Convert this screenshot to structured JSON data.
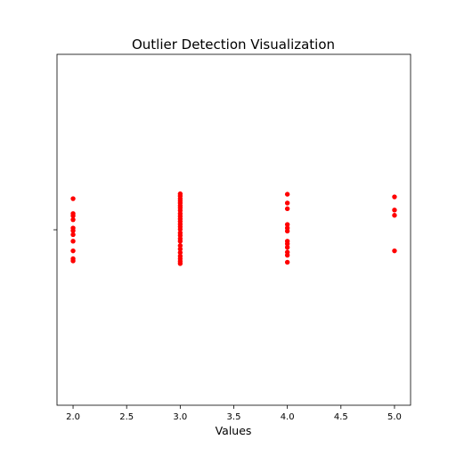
{
  "chart_data": {
    "type": "scatter",
    "title": "Outlier Detection Visualization",
    "xlabel": "Values",
    "ylabel": "",
    "xlim": [
      1.85,
      5.15
    ],
    "ylim": [
      -0.4,
      0.4
    ],
    "x_ticks": [
      "2.0",
      "2.5",
      "3.0",
      "3.5",
      "4.0",
      "4.5",
      "5.0"
    ],
    "x_tick_values": [
      2.0,
      2.5,
      3.0,
      3.5,
      4.0,
      4.5,
      5.0
    ],
    "y_ticks": [
      0
    ],
    "y_tick_labels": [
      ""
    ],
    "grid": false,
    "marker_color": "#ff0000",
    "series": [
      {
        "points": [
          [
            2,
            0.071
          ],
          [
            2,
            0.037
          ],
          [
            2,
            0.032
          ],
          [
            2,
            0.023
          ],
          [
            2,
            0.004
          ],
          [
            2,
            -0.002
          ],
          [
            2,
            -0.011
          ],
          [
            2,
            -0.026
          ],
          [
            2,
            -0.048
          ],
          [
            2,
            -0.066
          ],
          [
            2,
            -0.071
          ],
          [
            3,
            0.082
          ],
          [
            3,
            0.077
          ],
          [
            3,
            0.071
          ],
          [
            3,
            0.066
          ],
          [
            3,
            0.061
          ],
          [
            3,
            0.055
          ],
          [
            3,
            0.05
          ],
          [
            3,
            0.044
          ],
          [
            3,
            0.037
          ],
          [
            3,
            0.031
          ],
          [
            3,
            0.025
          ],
          [
            3,
            0.019
          ],
          [
            3,
            0.013
          ],
          [
            3,
            0.007
          ],
          [
            3,
            0.001
          ],
          [
            3,
            -0.007
          ],
          [
            3,
            -0.013
          ],
          [
            3,
            -0.02
          ],
          [
            3,
            -0.026
          ],
          [
            3,
            -0.036
          ],
          [
            3,
            -0.044
          ],
          [
            3,
            -0.052
          ],
          [
            3,
            -0.06
          ],
          [
            3,
            -0.066
          ],
          [
            3,
            -0.072
          ],
          [
            3,
            -0.077
          ],
          [
            4,
            0.081
          ],
          [
            4,
            0.061
          ],
          [
            4,
            0.048
          ],
          [
            4,
            0.012
          ],
          [
            4,
            0.004
          ],
          [
            4,
            -0.003
          ],
          [
            4,
            -0.026
          ],
          [
            4,
            -0.032
          ],
          [
            4,
            -0.04
          ],
          [
            4,
            -0.051
          ],
          [
            4,
            -0.058
          ],
          [
            4,
            -0.074
          ],
          [
            5,
            0.075
          ],
          [
            5,
            0.045
          ],
          [
            5,
            0.033
          ],
          [
            5,
            -0.048
          ]
        ]
      }
    ]
  }
}
